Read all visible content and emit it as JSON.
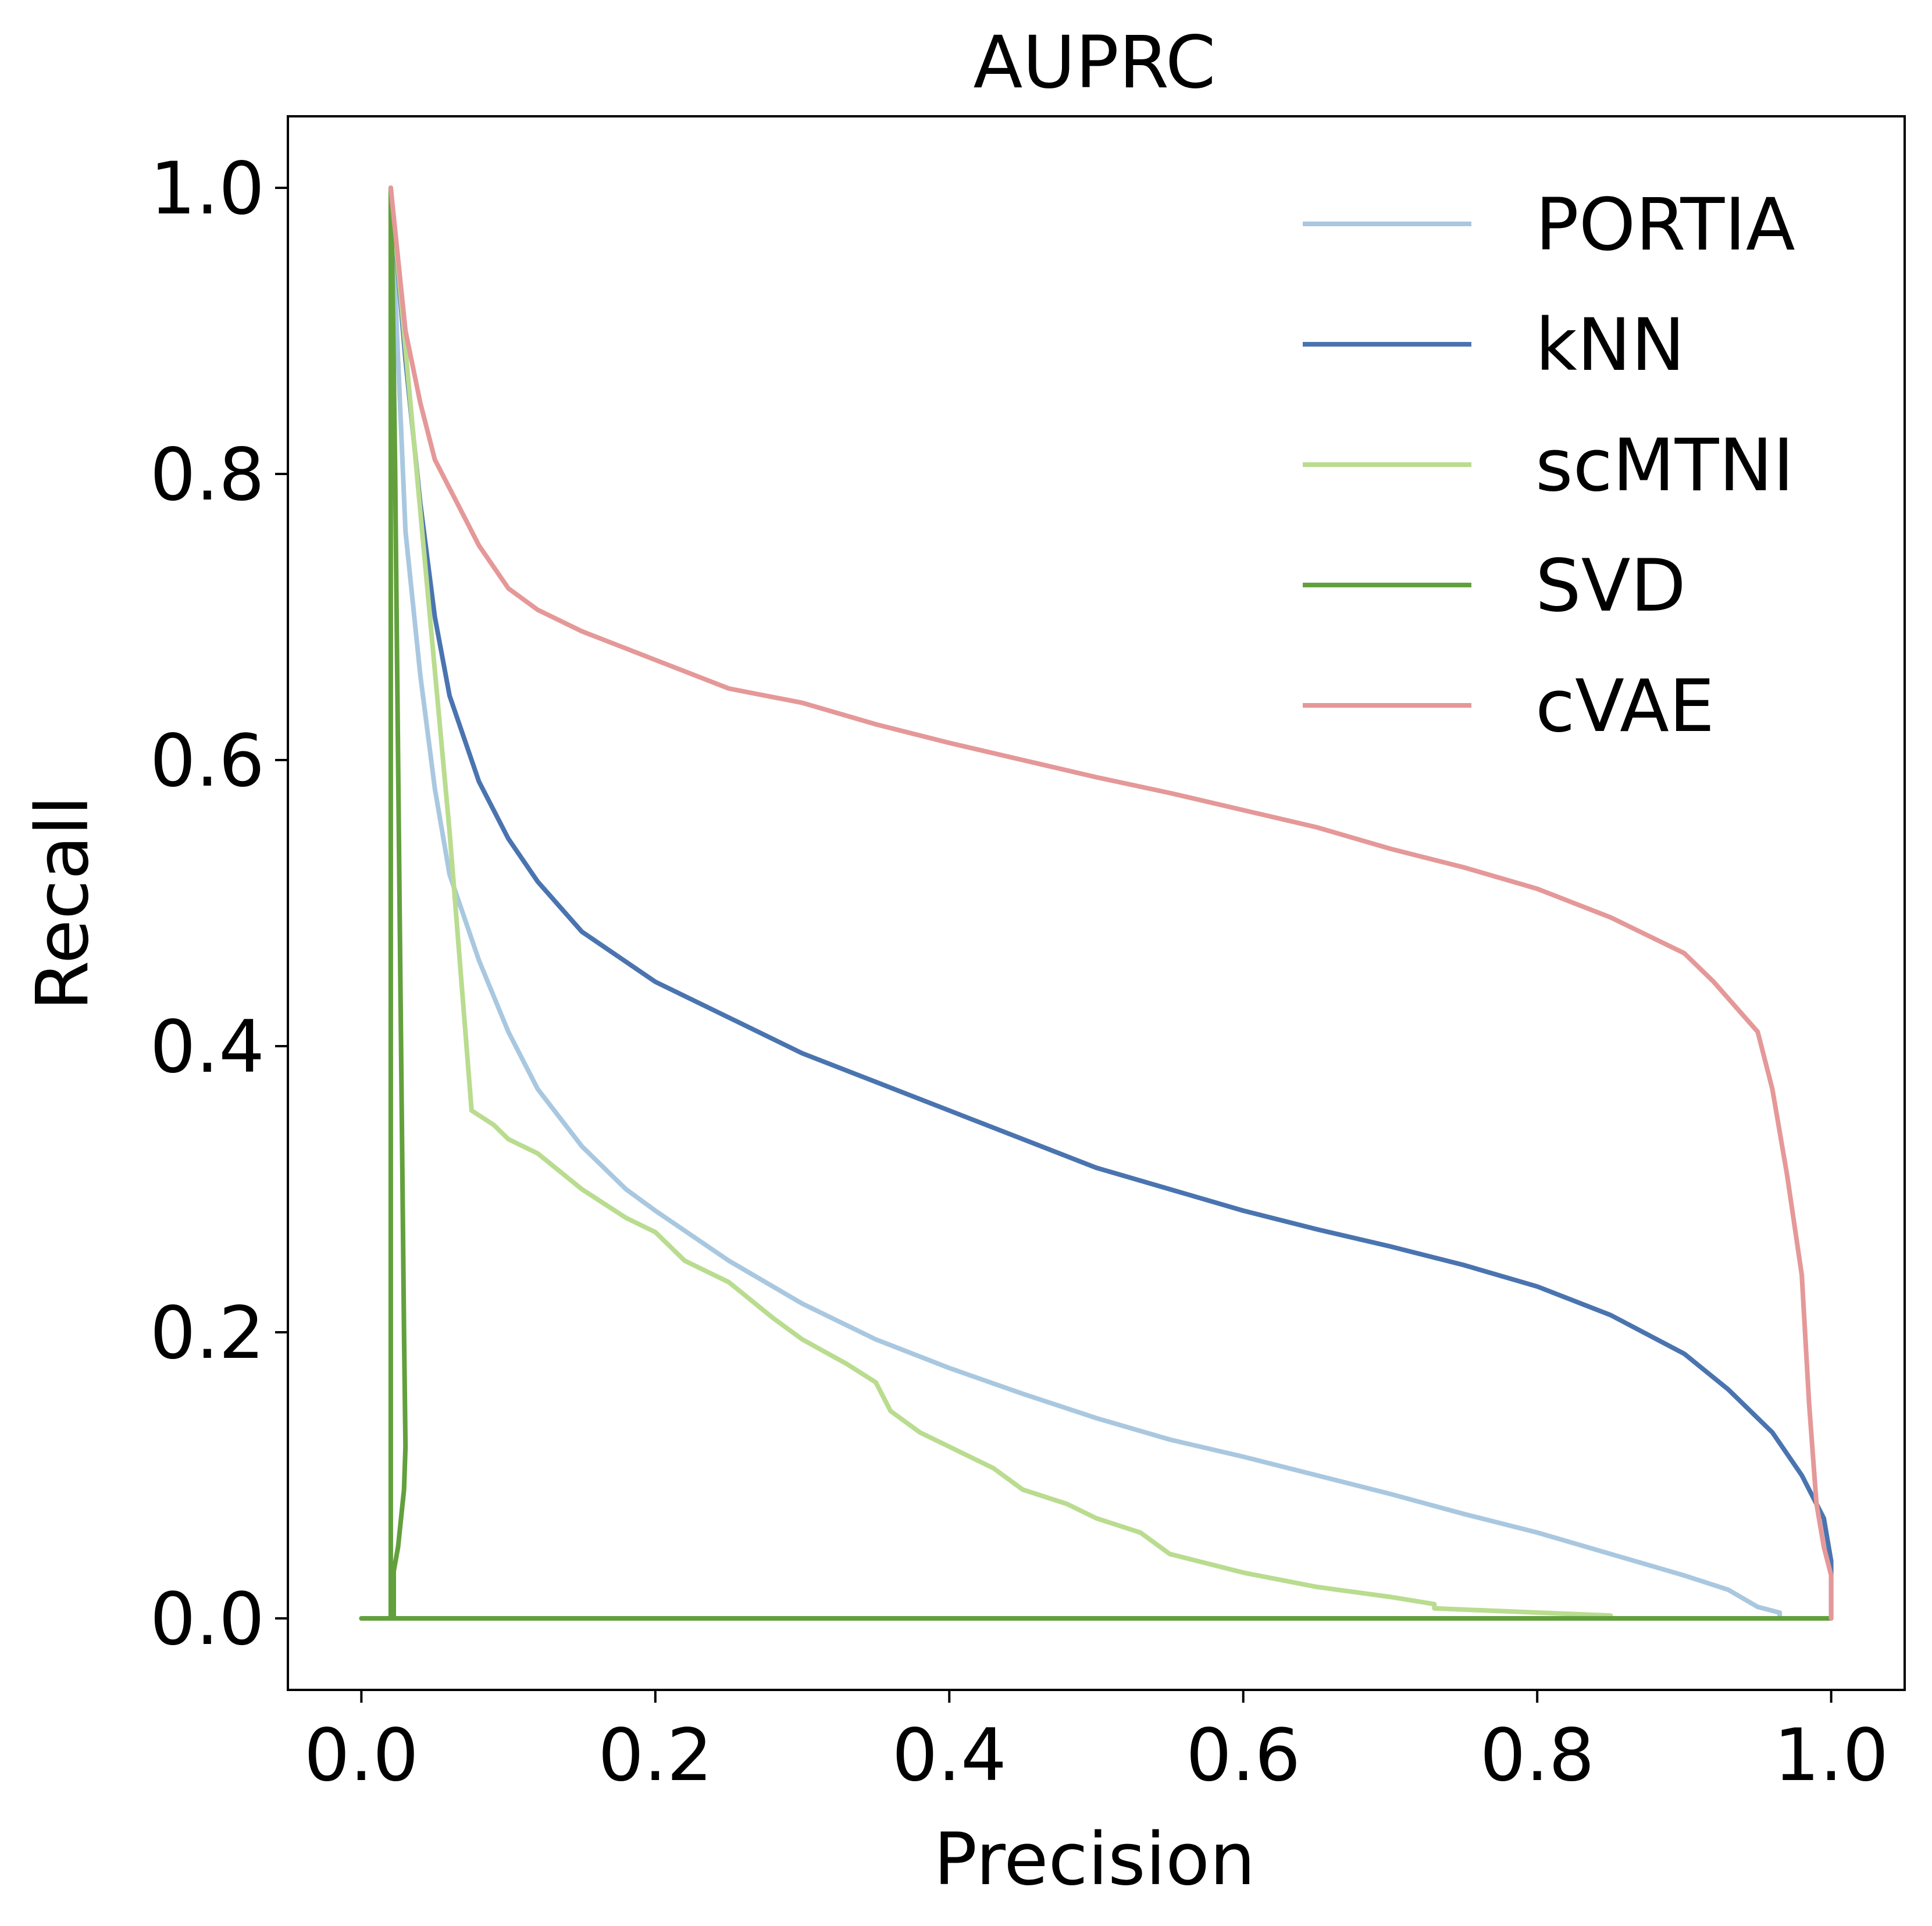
{
  "chart_data": {
    "type": "line",
    "title": "AUPRC",
    "xlabel": "Precision",
    "ylabel": "Recall",
    "xlim": [
      -0.05,
      1.05
    ],
    "ylim": [
      -0.05,
      1.05
    ],
    "xticks": [
      0.0,
      0.2,
      0.4,
      0.6,
      0.8,
      1.0
    ],
    "yticks": [
      0.0,
      0.2,
      0.4,
      0.6,
      0.8,
      1.0
    ],
    "xtick_labels": [
      "0.0",
      "0.2",
      "0.4",
      "0.6",
      "0.8",
      "1.0"
    ],
    "ytick_labels": [
      "0.0",
      "0.2",
      "0.4",
      "0.6",
      "0.8",
      "1.0"
    ],
    "grid": false,
    "legend_position": "top-right",
    "series": [
      {
        "name": "PORTIA",
        "color": "#a9c8e0",
        "points": [
          [
            0.02,
            1.0
          ],
          [
            0.025,
            0.88
          ],
          [
            0.03,
            0.76
          ],
          [
            0.04,
            0.66
          ],
          [
            0.05,
            0.58
          ],
          [
            0.06,
            0.52
          ],
          [
            0.07,
            0.49
          ],
          [
            0.08,
            0.46
          ],
          [
            0.1,
            0.41
          ],
          [
            0.12,
            0.37
          ],
          [
            0.15,
            0.33
          ],
          [
            0.18,
            0.3
          ],
          [
            0.2,
            0.285
          ],
          [
            0.25,
            0.25
          ],
          [
            0.3,
            0.22
          ],
          [
            0.35,
            0.195
          ],
          [
            0.4,
            0.175
          ],
          [
            0.45,
            0.157
          ],
          [
            0.5,
            0.14
          ],
          [
            0.55,
            0.125
          ],
          [
            0.6,
            0.113
          ],
          [
            0.65,
            0.1
          ],
          [
            0.7,
            0.087
          ],
          [
            0.75,
            0.073
          ],
          [
            0.8,
            0.06
          ],
          [
            0.85,
            0.045
          ],
          [
            0.9,
            0.03
          ],
          [
            0.93,
            0.02
          ],
          [
            0.95,
            0.008
          ],
          [
            0.965,
            0.004
          ],
          [
            0.965,
            0.0
          ],
          [
            1.0,
            0.0
          ]
        ]
      },
      {
        "name": "kNN",
        "color": "#4a74b0",
        "points": [
          [
            0.02,
            1.0
          ],
          [
            0.03,
            0.88
          ],
          [
            0.04,
            0.78
          ],
          [
            0.05,
            0.7
          ],
          [
            0.06,
            0.645
          ],
          [
            0.08,
            0.585
          ],
          [
            0.1,
            0.545
          ],
          [
            0.12,
            0.515
          ],
          [
            0.15,
            0.48
          ],
          [
            0.2,
            0.445
          ],
          [
            0.25,
            0.42
          ],
          [
            0.3,
            0.395
          ],
          [
            0.35,
            0.375
          ],
          [
            0.4,
            0.355
          ],
          [
            0.45,
            0.335
          ],
          [
            0.5,
            0.315
          ],
          [
            0.55,
            0.3
          ],
          [
            0.6,
            0.285
          ],
          [
            0.65,
            0.272
          ],
          [
            0.7,
            0.26
          ],
          [
            0.75,
            0.247
          ],
          [
            0.8,
            0.232
          ],
          [
            0.85,
            0.212
          ],
          [
            0.9,
            0.185
          ],
          [
            0.93,
            0.16
          ],
          [
            0.96,
            0.13
          ],
          [
            0.98,
            0.1
          ],
          [
            0.995,
            0.07
          ],
          [
            1.0,
            0.04
          ],
          [
            1.0,
            0.0
          ]
        ]
      },
      {
        "name": "scMTNI",
        "color": "#b9dc8f",
        "points": [
          [
            0.02,
            1.0
          ],
          [
            0.06,
            0.55
          ],
          [
            0.075,
            0.355
          ],
          [
            0.09,
            0.345
          ],
          [
            0.1,
            0.335
          ],
          [
            0.12,
            0.325
          ],
          [
            0.15,
            0.3
          ],
          [
            0.18,
            0.28
          ],
          [
            0.2,
            0.27
          ],
          [
            0.22,
            0.25
          ],
          [
            0.25,
            0.235
          ],
          [
            0.28,
            0.21
          ],
          [
            0.3,
            0.195
          ],
          [
            0.33,
            0.178
          ],
          [
            0.35,
            0.165
          ],
          [
            0.36,
            0.145
          ],
          [
            0.38,
            0.13
          ],
          [
            0.4,
            0.12
          ],
          [
            0.43,
            0.105
          ],
          [
            0.45,
            0.09
          ],
          [
            0.48,
            0.08
          ],
          [
            0.5,
            0.07
          ],
          [
            0.53,
            0.06
          ],
          [
            0.55,
            0.045
          ],
          [
            0.6,
            0.032
          ],
          [
            0.65,
            0.022
          ],
          [
            0.7,
            0.015
          ],
          [
            0.73,
            0.01
          ],
          [
            0.73,
            0.007
          ],
          [
            0.85,
            0.002
          ],
          [
            0.85,
            0.0
          ],
          [
            1.0,
            0.0
          ]
        ]
      },
      {
        "name": "SVD",
        "color": "#62a03d",
        "points": [
          [
            0.0,
            0.0
          ],
          [
            0.022,
            0.0
          ],
          [
            0.022,
            0.033
          ],
          [
            0.025,
            0.05
          ],
          [
            0.027,
            0.07
          ],
          [
            0.029,
            0.09
          ],
          [
            0.03,
            0.12
          ],
          [
            0.029,
            0.2
          ],
          [
            0.027,
            0.4
          ],
          [
            0.025,
            0.6
          ],
          [
            0.023,
            0.8
          ],
          [
            0.021,
            0.95
          ],
          [
            0.02,
            1.0
          ],
          [
            0.02,
            0.0
          ],
          [
            1.0,
            0.0
          ]
        ]
      },
      {
        "name": "cVAE",
        "color": "#e59898",
        "points": [
          [
            0.02,
            1.0
          ],
          [
            0.03,
            0.9
          ],
          [
            0.04,
            0.85
          ],
          [
            0.05,
            0.81
          ],
          [
            0.07,
            0.77
          ],
          [
            0.08,
            0.75
          ],
          [
            0.1,
            0.72
          ],
          [
            0.12,
            0.705
          ],
          [
            0.15,
            0.69
          ],
          [
            0.2,
            0.67
          ],
          [
            0.25,
            0.65
          ],
          [
            0.3,
            0.64
          ],
          [
            0.35,
            0.625
          ],
          [
            0.4,
            0.612
          ],
          [
            0.45,
            0.6
          ],
          [
            0.5,
            0.588
          ],
          [
            0.55,
            0.577
          ],
          [
            0.6,
            0.565
          ],
          [
            0.65,
            0.553
          ],
          [
            0.7,
            0.538
          ],
          [
            0.75,
            0.525
          ],
          [
            0.8,
            0.51
          ],
          [
            0.85,
            0.49
          ],
          [
            0.9,
            0.465
          ],
          [
            0.92,
            0.445
          ],
          [
            0.95,
            0.41
          ],
          [
            0.96,
            0.37
          ],
          [
            0.97,
            0.31
          ],
          [
            0.98,
            0.24
          ],
          [
            0.985,
            0.15
          ],
          [
            0.99,
            0.08
          ],
          [
            0.995,
            0.05
          ],
          [
            1.0,
            0.03
          ],
          [
            1.0,
            0.0
          ]
        ]
      }
    ]
  }
}
